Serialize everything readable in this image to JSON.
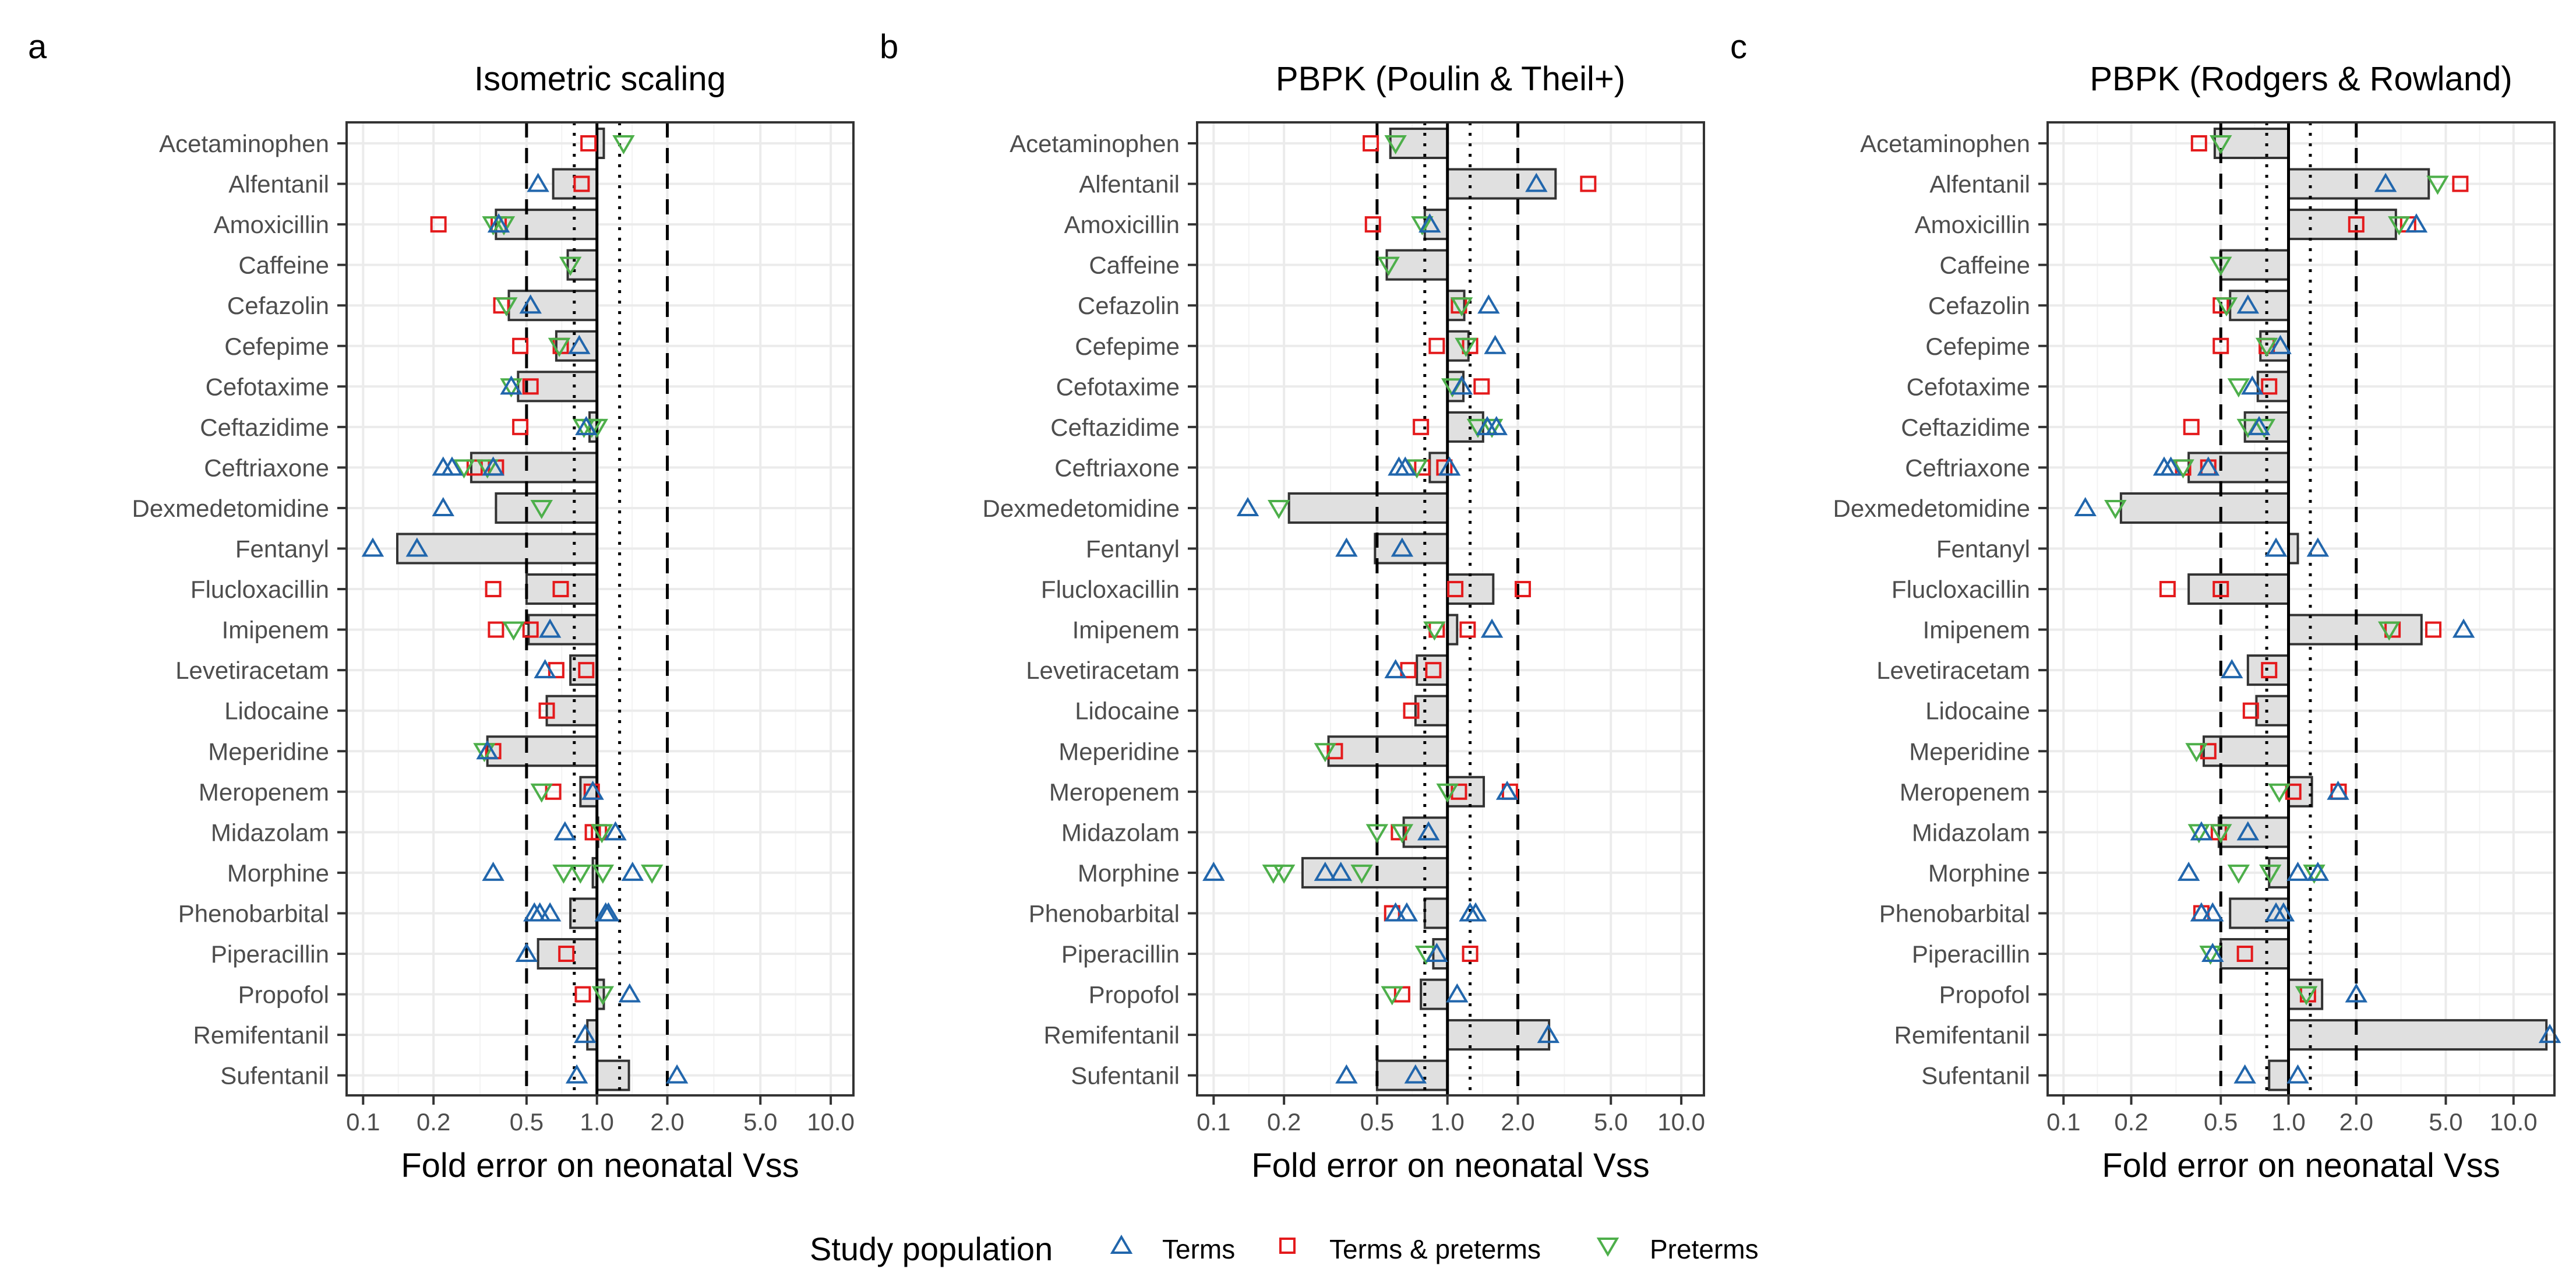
{
  "figure": {
    "legend_title": "Study population",
    "legend_items": [
      {
        "key": "terms",
        "label": "Terms",
        "symbol": "triangle-up",
        "color": "#2166ac"
      },
      {
        "key": "both",
        "label": "Terms & preterms",
        "symbol": "square",
        "color": "#e41a1c"
      },
      {
        "key": "preterms",
        "label": "Preterms",
        "symbol": "triangle-down",
        "color": "#4daf4a"
      }
    ],
    "colors": {
      "bar_fill": "#e0e0e0",
      "bar_stroke": "#333333",
      "grid": "#ebebeb",
      "panel_border": "#333333"
    }
  },
  "chart_data": [
    {
      "type": "bar",
      "panel_letter": "a",
      "title": "Isometric scaling",
      "xlabel": "Fold error on neonatal Vss",
      "x_scale": "log10",
      "xlim": [
        0.085,
        12.5
      ],
      "xticks": [
        0.1,
        0.2,
        0.5,
        1.0,
        2.0,
        5.0,
        10.0
      ],
      "xtick_labels": [
        "0.1",
        "0.2",
        "0.5",
        "1.0",
        "2.0",
        "5.0",
        "10.0"
      ],
      "reference_lines": {
        "dashed": [
          0.5,
          2.0
        ],
        "dotted": [
          0.8,
          1.25
        ],
        "solid": [
          1.0
        ]
      },
      "categories": [
        "Acetaminophen",
        "Alfentanil",
        "Amoxicillin",
        "Caffeine",
        "Cefazolin",
        "Cefepime",
        "Cefotaxime",
        "Ceftazidime",
        "Ceftriaxone",
        "Dexmedetomidine",
        "Fentanyl",
        "Flucloxacillin",
        "Imipenem",
        "Levetiracetam",
        "Lidocaine",
        "Meperidine",
        "Meropenem",
        "Midazolam",
        "Morphine",
        "Phenobarbital",
        "Piperacillin",
        "Propofol",
        "Remifentanil",
        "Sufentanil"
      ],
      "bar_values": [
        1.07,
        0.65,
        0.37,
        0.75,
        0.42,
        0.67,
        0.46,
        0.93,
        0.29,
        0.37,
        0.14,
        0.5,
        0.51,
        0.77,
        0.61,
        0.34,
        0.85,
        1.0,
        0.96,
        0.77,
        0.56,
        1.07,
        0.91,
        1.37
      ],
      "points": {
        "terms": [
          [
            1,
            0.56
          ],
          [
            2,
            0.38
          ],
          [
            4,
            0.52
          ],
          [
            5,
            0.84
          ],
          [
            6,
            0.43
          ],
          [
            7,
            0.9
          ],
          [
            8,
            0.22
          ],
          [
            8,
            0.24
          ],
          [
            8,
            0.36
          ],
          [
            9,
            0.22
          ],
          [
            10,
            0.11
          ],
          [
            10,
            0.17
          ],
          [
            12,
            0.63
          ],
          [
            13,
            0.6
          ],
          [
            15,
            0.34
          ],
          [
            16,
            0.96
          ],
          [
            17,
            0.73
          ],
          [
            17,
            1.2
          ],
          [
            18,
            0.36
          ],
          [
            18,
            1.42
          ],
          [
            19,
            0.54
          ],
          [
            19,
            0.57
          ],
          [
            19,
            0.63
          ],
          [
            19,
            1.09
          ],
          [
            19,
            1.12
          ],
          [
            20,
            0.5
          ],
          [
            21,
            1.38
          ],
          [
            22,
            0.89
          ],
          [
            23,
            0.82
          ],
          [
            23,
            2.2
          ]
        ],
        "both": [
          [
            0,
            0.92
          ],
          [
            1,
            0.86
          ],
          [
            2,
            0.21
          ],
          [
            2,
            0.38
          ],
          [
            4,
            0.39
          ],
          [
            5,
            0.47
          ],
          [
            5,
            0.7
          ],
          [
            6,
            0.52
          ],
          [
            7,
            0.47
          ],
          [
            8,
            0.3
          ],
          [
            8,
            0.37
          ],
          [
            11,
            0.36
          ],
          [
            11,
            0.7
          ],
          [
            12,
            0.37
          ],
          [
            12,
            0.52
          ],
          [
            13,
            0.67
          ],
          [
            13,
            0.9
          ],
          [
            14,
            0.61
          ],
          [
            15,
            0.36
          ],
          [
            16,
            0.65
          ],
          [
            16,
            0.95
          ],
          [
            17,
            0.96
          ],
          [
            17,
            1.02
          ],
          [
            20,
            0.74
          ],
          [
            21,
            0.87
          ]
        ],
        "preterms": [
          [
            0,
            1.3
          ],
          [
            2,
            0.36
          ],
          [
            2,
            0.4
          ],
          [
            3,
            0.77
          ],
          [
            4,
            0.41
          ],
          [
            5,
            0.69
          ],
          [
            6,
            0.43
          ],
          [
            7,
            0.88
          ],
          [
            7,
            0.95
          ],
          [
            7,
            1.0
          ],
          [
            8,
            0.27
          ],
          [
            8,
            0.34
          ],
          [
            9,
            0.58
          ],
          [
            12,
            0.44
          ],
          [
            15,
            0.33
          ],
          [
            16,
            0.58
          ],
          [
            17,
            1.05
          ],
          [
            18,
            0.72
          ],
          [
            18,
            0.85
          ],
          [
            18,
            1.06
          ],
          [
            18,
            1.72
          ],
          [
            21,
            1.06
          ]
        ]
      }
    },
    {
      "type": "bar",
      "panel_letter": "b",
      "title": "PBPK (Poulin & Theil+)",
      "xlabel": "Fold error on neonatal Vss",
      "x_scale": "log10",
      "xlim": [
        0.085,
        12.5
      ],
      "xticks": [
        0.1,
        0.2,
        0.5,
        1.0,
        2.0,
        5.0,
        10.0
      ],
      "xtick_labels": [
        "0.1",
        "0.2",
        "0.5",
        "1.0",
        "2.0",
        "5.0",
        "10.0"
      ],
      "reference_lines": {
        "dashed": [
          0.5,
          2.0
        ],
        "dotted": [
          0.8,
          1.25
        ],
        "solid": [
          1.0
        ]
      },
      "categories": [
        "Acetaminophen",
        "Alfentanil",
        "Amoxicillin",
        "Caffeine",
        "Cefazolin",
        "Cefepime",
        "Cefotaxime",
        "Ceftazidime",
        "Ceftriaxone",
        "Dexmedetomidine",
        "Fentanyl",
        "Flucloxacillin",
        "Imipenem",
        "Levetiracetam",
        "Lidocaine",
        "Meperidine",
        "Meropenem",
        "Midazolam",
        "Morphine",
        "Phenobarbital",
        "Piperacillin",
        "Propofol",
        "Remifentanil",
        "Sufentanil"
      ],
      "bar_values": [
        0.57,
        2.9,
        0.8,
        0.55,
        1.18,
        1.23,
        1.17,
        1.42,
        0.84,
        0.21,
        0.49,
        1.57,
        1.1,
        0.74,
        0.73,
        0.31,
        1.43,
        0.65,
        0.24,
        0.8,
        0.87,
        0.77,
        2.72,
        0.5
      ],
      "points": {
        "terms": [
          [
            1,
            2.4
          ],
          [
            2,
            0.84
          ],
          [
            4,
            1.5
          ],
          [
            5,
            1.6
          ],
          [
            6,
            1.15
          ],
          [
            7,
            1.48
          ],
          [
            7,
            1.62
          ],
          [
            8,
            0.62
          ],
          [
            8,
            0.66
          ],
          [
            8,
            1.02
          ],
          [
            9,
            0.14
          ],
          [
            10,
            0.37
          ],
          [
            10,
            0.64
          ],
          [
            12,
            1.55
          ],
          [
            13,
            0.6
          ],
          [
            16,
            1.8
          ],
          [
            17,
            0.83
          ],
          [
            18,
            0.1
          ],
          [
            18,
            0.3
          ],
          [
            18,
            0.35
          ],
          [
            19,
            0.6
          ],
          [
            19,
            0.67
          ],
          [
            19,
            1.25
          ],
          [
            19,
            1.32
          ],
          [
            20,
            0.9
          ],
          [
            21,
            1.1
          ],
          [
            22,
            2.7
          ],
          [
            23,
            0.37
          ],
          [
            23,
            0.73
          ]
        ],
        "both": [
          [
            0,
            0.47
          ],
          [
            1,
            4.0
          ],
          [
            2,
            0.48
          ],
          [
            4,
            1.12
          ],
          [
            5,
            0.9
          ],
          [
            5,
            1.25
          ],
          [
            6,
            1.4
          ],
          [
            7,
            0.77
          ],
          [
            8,
            0.78
          ],
          [
            8,
            0.97
          ],
          [
            11,
            1.08
          ],
          [
            11,
            2.1
          ],
          [
            12,
            0.9
          ],
          [
            12,
            1.22
          ],
          [
            13,
            0.68
          ],
          [
            13,
            0.87
          ],
          [
            14,
            0.7
          ],
          [
            15,
            0.33
          ],
          [
            16,
            1.12
          ],
          [
            16,
            1.85
          ],
          [
            17,
            0.62
          ],
          [
            19,
            0.58
          ],
          [
            20,
            1.25
          ],
          [
            21,
            0.64
          ]
        ],
        "preterms": [
          [
            0,
            0.6
          ],
          [
            2,
            0.78
          ],
          [
            3,
            0.56
          ],
          [
            4,
            1.15
          ],
          [
            5,
            1.2
          ],
          [
            6,
            1.05
          ],
          [
            7,
            1.35
          ],
          [
            7,
            1.55
          ],
          [
            8,
            0.74
          ],
          [
            9,
            0.19
          ],
          [
            12,
            0.88
          ],
          [
            15,
            0.3
          ],
          [
            16,
            1.0
          ],
          [
            17,
            0.5
          ],
          [
            17,
            0.64
          ],
          [
            18,
            0.18
          ],
          [
            18,
            0.2
          ],
          [
            18,
            0.43
          ],
          [
            20,
            0.81
          ],
          [
            21,
            0.58
          ]
        ]
      }
    },
    {
      "type": "bar",
      "panel_letter": "c",
      "title": "PBPK (Rodgers & Rowland)",
      "xlabel": "Fold error on neonatal Vss",
      "x_scale": "log10",
      "xlim": [
        0.085,
        15.2
      ],
      "xticks": [
        0.1,
        0.2,
        0.5,
        1.0,
        2.0,
        5.0,
        10.0
      ],
      "xtick_labels": [
        "0.1",
        "0.2",
        "0.5",
        "1.0",
        "2.0",
        "5.0",
        "10.0"
      ],
      "reference_lines": {
        "dashed": [
          0.5,
          2.0
        ],
        "dotted": [
          0.8,
          1.25
        ],
        "solid": [
          1.0
        ]
      },
      "categories": [
        "Acetaminophen",
        "Alfentanil",
        "Amoxicillin",
        "Caffeine",
        "Cefazolin",
        "Cefepime",
        "Cefotaxime",
        "Ceftazidime",
        "Ceftriaxone",
        "Dexmedetomidine",
        "Fentanyl",
        "Flucloxacillin",
        "Imipenem",
        "Levetiracetam",
        "Lidocaine",
        "Meperidine",
        "Meropenem",
        "Midazolam",
        "Morphine",
        "Phenobarbital",
        "Piperacillin",
        "Propofol",
        "Remifentanil",
        "Sufentanil"
      ],
      "bar_values": [
        0.47,
        4.2,
        3.0,
        0.5,
        0.55,
        0.75,
        0.73,
        0.64,
        0.36,
        0.18,
        1.1,
        0.36,
        3.9,
        0.66,
        0.72,
        0.42,
        1.27,
        0.49,
        0.82,
        0.55,
        0.5,
        1.41,
        14.0,
        0.82
      ],
      "points": {
        "terms": [
          [
            1,
            2.7
          ],
          [
            2,
            3.7
          ],
          [
            4,
            0.66
          ],
          [
            5,
            0.92
          ],
          [
            6,
            0.69
          ],
          [
            7,
            0.74
          ],
          [
            8,
            0.28
          ],
          [
            8,
            0.3
          ],
          [
            8,
            0.44
          ],
          [
            9,
            0.125
          ],
          [
            10,
            0.88
          ],
          [
            10,
            1.35
          ],
          [
            12,
            6.0
          ],
          [
            13,
            0.56
          ],
          [
            16,
            1.66
          ],
          [
            17,
            0.66
          ],
          [
            17,
            0.41
          ],
          [
            18,
            0.36
          ],
          [
            18,
            1.1
          ],
          [
            18,
            1.35
          ],
          [
            19,
            0.41
          ],
          [
            19,
            0.46
          ],
          [
            19,
            0.88
          ],
          [
            19,
            0.95
          ],
          [
            20,
            0.46
          ],
          [
            21,
            2.0
          ],
          [
            22,
            14.5
          ],
          [
            23,
            0.64
          ],
          [
            23,
            1.1
          ]
        ],
        "both": [
          [
            0,
            0.4
          ],
          [
            1,
            5.8
          ],
          [
            2,
            2.0
          ],
          [
            2,
            3.4
          ],
          [
            4,
            0.5
          ],
          [
            5,
            0.5
          ],
          [
            5,
            0.8
          ],
          [
            6,
            0.82
          ],
          [
            7,
            0.37
          ],
          [
            8,
            0.34
          ],
          [
            8,
            0.44
          ],
          [
            11,
            0.29
          ],
          [
            11,
            0.5
          ],
          [
            12,
            2.9
          ],
          [
            12,
            4.4
          ],
          [
            13,
            0.82
          ],
          [
            14,
            0.68
          ],
          [
            15,
            0.44
          ],
          [
            16,
            1.05
          ],
          [
            16,
            1.67
          ],
          [
            17,
            0.49
          ],
          [
            19,
            0.41
          ],
          [
            20,
            0.64
          ],
          [
            21,
            1.22
          ]
        ],
        "preterms": [
          [
            0,
            0.5
          ],
          [
            1,
            4.6
          ],
          [
            2,
            3.1
          ],
          [
            3,
            0.5
          ],
          [
            4,
            0.53
          ],
          [
            5,
            0.8
          ],
          [
            6,
            0.6
          ],
          [
            7,
            0.66
          ],
          [
            7,
            0.78
          ],
          [
            8,
            0.34
          ],
          [
            9,
            0.17
          ],
          [
            12,
            2.8
          ],
          [
            15,
            0.39
          ],
          [
            16,
            0.91
          ],
          [
            17,
            0.4
          ],
          [
            17,
            0.5
          ],
          [
            18,
            0.6
          ],
          [
            18,
            0.83
          ],
          [
            18,
            1.3
          ],
          [
            20,
            0.45
          ],
          [
            21,
            1.2
          ]
        ]
      }
    }
  ]
}
